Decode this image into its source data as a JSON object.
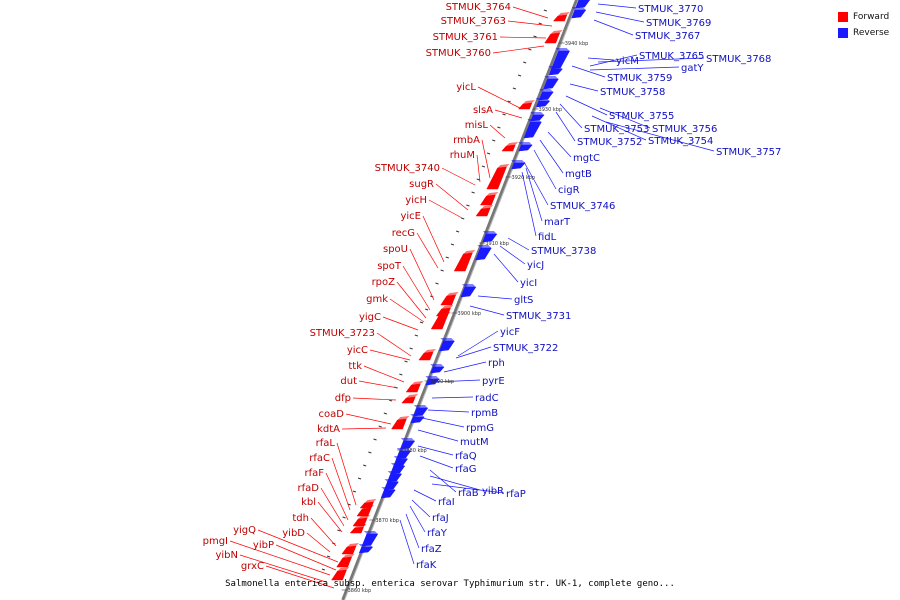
{
  "colors": {
    "forward": "#ff0000",
    "reverse": "#1a1aff",
    "axis": "#888888"
  },
  "legend": [
    {
      "label": "Forward",
      "color": "#ff0000"
    },
    {
      "label": "Reverse",
      "color": "#1a1aff"
    }
  ],
  "caption": "Salmonella enterica subsp. enterica serovar Typhimurium str. UK-1, complete geno...",
  "ticks": [
    "3940 kbp",
    "3930 kbp",
    "3920 kbp",
    "3910 kbp",
    "3900 kbp",
    "3890 kbp",
    "3880 kbp",
    "3870 kbp",
    "3860 kbp"
  ],
  "forward_labels": [
    "STMUK_3764",
    "STMUK_3763",
    "STMUK_3761",
    "STMUK_3760",
    "yicL",
    "slsA",
    "misL",
    "rmbA",
    "rhuM",
    "STMUK_3740",
    "sugR",
    "yicH",
    "yicE",
    "recG",
    "spoU",
    "spoT",
    "rpoZ",
    "gmk",
    "yigC",
    "STMUK_3723",
    "yicC",
    "ttk",
    "dut",
    "dfp",
    "coaD",
    "kdtA",
    "rfaL",
    "rfaC",
    "rfaF",
    "rfaD",
    "kbl",
    "tdh",
    "yibD",
    "yigQ",
    "yibP",
    "pmgI",
    "yibN",
    "grxC"
  ],
  "reverse_labels": [
    "STMUK_3770",
    "STMUK_3769",
    "STMUK_3767",
    "yicM",
    "STMUK_3765",
    "gatY",
    "STMUK_3768",
    "STMUK_3759",
    "STMUK_3758",
    "STMUK_3755",
    "STMUK_3753",
    "STMUK_3756",
    "STMUK_3752",
    "STMUK_3754",
    "STMUK_3757",
    "mgtC",
    "mgtB",
    "cigR",
    "STMUK_3746",
    "marT",
    "fidL",
    "STMUK_3738",
    "yicJ",
    "yicI",
    "gltS",
    "STMUK_3731",
    "yicF",
    "STMUK_3722",
    "rph",
    "pyrE",
    "radC",
    "rpmB",
    "rpmG",
    "mutM",
    "rfaQ",
    "rfaG",
    "rfaB",
    "yibR",
    "rfaP",
    "rfaI",
    "rfaJ",
    "rfaY",
    "rfaZ",
    "rfaK"
  ]
}
